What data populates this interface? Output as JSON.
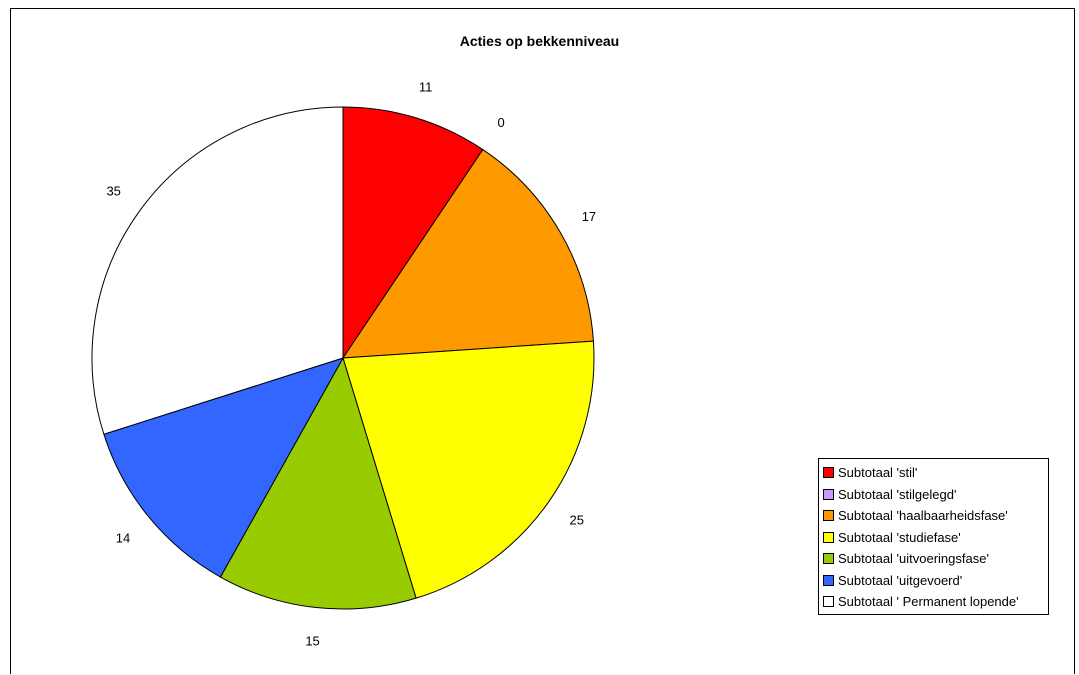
{
  "chart_data": {
    "type": "pie",
    "title": "Acties op bekkenniveau",
    "legend_position": "right",
    "slices": [
      {
        "name": "Subtotaal 'stil'",
        "value": 11,
        "label": "11",
        "color": "#ff0000"
      },
      {
        "name": "Subtotaal 'stilgelegd'",
        "value": 0,
        "label": "0",
        "color": "#cc99ff"
      },
      {
        "name": "Subtotaal 'haalbaarheidsfase'",
        "value": 17,
        "label": "17",
        "color": "#ff9900"
      },
      {
        "name": "Subtotaal 'studiefase'",
        "value": 25,
        "label": "25",
        "color": "#ffff00"
      },
      {
        "name": "Subtotaal 'uitvoeringsfase'",
        "value": 15,
        "label": "15",
        "color": "#99cc00"
      },
      {
        "name": "Subtotaal 'uitgevoerd'",
        "value": 14,
        "label": "14",
        "color": "#3366ff"
      },
      {
        "name": "Subtotaal ' Permanent lopende'",
        "value": 35,
        "label": "35",
        "color": "#ffffff"
      }
    ]
  }
}
